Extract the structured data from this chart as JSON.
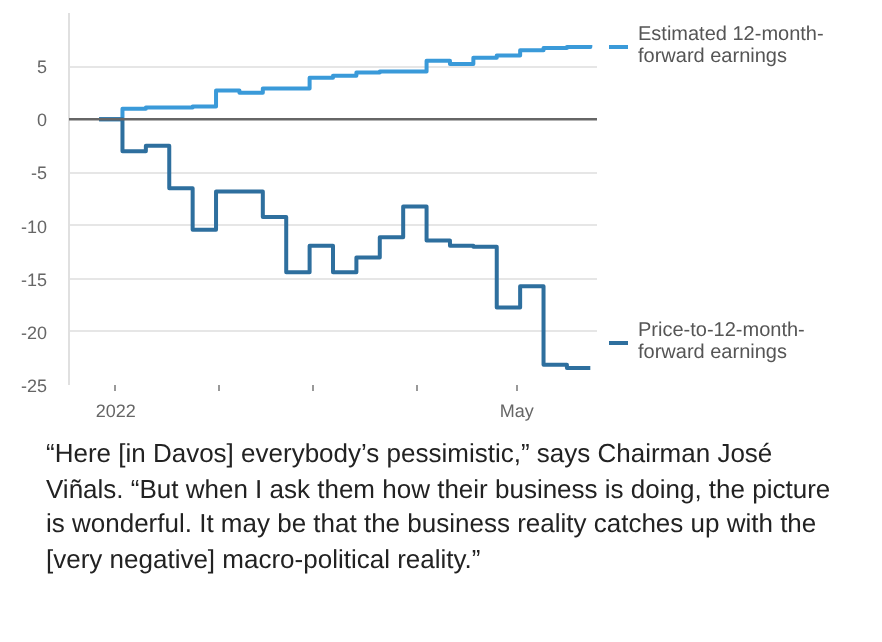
{
  "chart_data": {
    "type": "step",
    "x": [
      "2021-12-27",
      "2022-01-03",
      "2022-01-10",
      "2022-01-17",
      "2022-01-24",
      "2022-01-31",
      "2022-02-07",
      "2022-02-14",
      "2022-02-21",
      "2022-02-28",
      "2022-03-07",
      "2022-03-14",
      "2022-03-21",
      "2022-03-28",
      "2022-04-04",
      "2022-04-11",
      "2022-04-18",
      "2022-04-25",
      "2022-05-02",
      "2022-05-09",
      "2022-05-16",
      "2022-05-23"
    ],
    "series": [
      {
        "name": "Estimated 12-month-forward earnings",
        "color": "#3a9ad9",
        "values": [
          0,
          1.0,
          1.1,
          1.1,
          1.2,
          2.7,
          2.5,
          2.9,
          2.9,
          3.9,
          4.1,
          4.4,
          4.5,
          4.5,
          5.5,
          5.2,
          5.8,
          6.0,
          6.5,
          6.7,
          6.8,
          7.0
        ]
      },
      {
        "name": "Price-to-12-month-forward earnings",
        "color": "#2e6f9e",
        "values": [
          0,
          -3.0,
          -2.5,
          -6.5,
          -10.4,
          -6.8,
          -6.8,
          -9.2,
          -14.4,
          -11.9,
          -14.4,
          -13.0,
          -11.1,
          -8.2,
          -11.4,
          -11.9,
          -12.0,
          -17.7,
          -15.7,
          -23.1,
          -23.4,
          -23.4
        ]
      }
    ],
    "xlim": [
      "2021-12-18",
      "2022-05-25"
    ],
    "xticks": [
      {
        "value": "2022-01-01",
        "label": "2022"
      },
      {
        "value": "2022-02-01",
        "label": null
      },
      {
        "value": "2022-03-01",
        "label": null
      },
      {
        "value": "2022-04-01",
        "label": null
      },
      {
        "value": "2022-05-01",
        "label": "May"
      }
    ],
    "ylim": [
      -25,
      10
    ],
    "yticks": [
      5,
      0,
      -5,
      -10,
      -15,
      -20,
      -25
    ],
    "grid": "y",
    "legend": "right",
    "ref_lines": [
      {
        "axis": "y",
        "value": 0,
        "label": null,
        "color": "#666666"
      }
    ],
    "annotations": [
      "“Here [in Davos] everybody’s pessimistic,” says Chairman José Viñals. “But when I ask them how their business is doing, the picture is wonderful. It may be that the business reality catches up with the [very negative] macro-political reality.”"
    ]
  }
}
